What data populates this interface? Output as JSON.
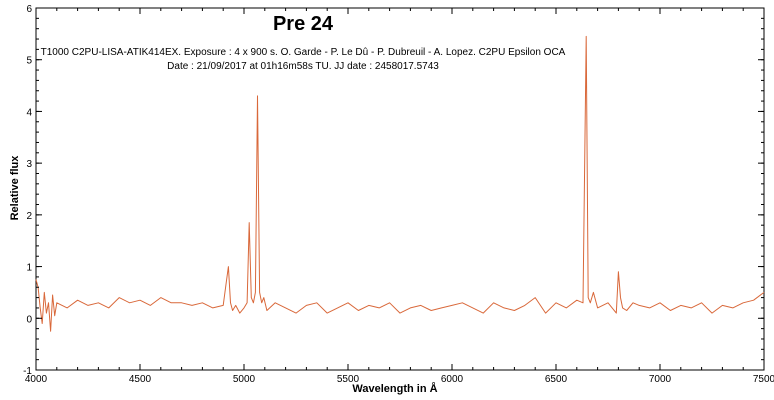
{
  "chart_data": {
    "type": "line",
    "title": "Pre 24",
    "subtitle_lines": [
      "T1000 C2PU-LISA-ATIK414EX. Exposure : 4 x 900 s. O. Garde - P. Le Dû - P. Dubreuil - A. Lopez. C2PU Epsilon OCA",
      "Date : 21/09/2017 at 01h16m58s TU. JJ date : 2458017.5743"
    ],
    "xlabel": "Wavelength in Å",
    "ylabel": "Relative flux",
    "xlim": [
      4000,
      7500
    ],
    "ylim": [
      -1,
      6
    ],
    "x_ticks": [
      4000,
      4500,
      5000,
      5500,
      6000,
      6500,
      7000,
      7500
    ],
    "y_ticks": [
      -1,
      0,
      1,
      2,
      3,
      4,
      5,
      6
    ],
    "grid": false,
    "line_color": "#d9683a",
    "series": [
      {
        "x": [
          4000,
          4010,
          4020,
          4030,
          4040,
          4050,
          4060,
          4070,
          4080,
          4090,
          4100,
          4150,
          4200,
          4250,
          4300,
          4350,
          4400,
          4450,
          4500,
          4550,
          4600,
          4650,
          4700,
          4750,
          4800,
          4850,
          4900,
          4915,
          4925,
          4935,
          4945,
          4960,
          4980,
          5000,
          5015,
          5025,
          5035,
          5045,
          5055,
          5065,
          5075,
          5085,
          5095,
          5110,
          5150,
          5200,
          5250,
          5300,
          5350,
          5400,
          5450,
          5500,
          5550,
          5600,
          5650,
          5700,
          5750,
          5800,
          5850,
          5900,
          5950,
          6000,
          6050,
          6100,
          6150,
          6200,
          6250,
          6300,
          6350,
          6400,
          6450,
          6500,
          6550,
          6600,
          6630,
          6645,
          6655,
          6665,
          6680,
          6700,
          6750,
          6790,
          6800,
          6810,
          6820,
          6840,
          6870,
          6900,
          6950,
          7000,
          7050,
          7100,
          7150,
          7200,
          7250,
          7300,
          7350,
          7400,
          7450,
          7500
        ],
        "y": [
          0.75,
          0.6,
          0.2,
          -0.1,
          0.5,
          0.1,
          0.3,
          -0.25,
          0.45,
          0.05,
          0.3,
          0.2,
          0.35,
          0.25,
          0.3,
          0.2,
          0.4,
          0.3,
          0.35,
          0.25,
          0.4,
          0.3,
          0.3,
          0.25,
          0.3,
          0.2,
          0.25,
          0.7,
          1.0,
          0.3,
          0.15,
          0.25,
          0.1,
          0.2,
          0.3,
          1.85,
          0.4,
          0.3,
          0.5,
          4.3,
          0.5,
          0.3,
          0.4,
          0.15,
          0.3,
          0.2,
          0.1,
          0.25,
          0.3,
          0.1,
          0.2,
          0.3,
          0.15,
          0.25,
          0.2,
          0.3,
          0.1,
          0.2,
          0.25,
          0.15,
          0.2,
          0.25,
          0.3,
          0.2,
          0.1,
          0.3,
          0.2,
          0.15,
          0.25,
          0.4,
          0.1,
          0.3,
          0.2,
          0.35,
          0.3,
          5.45,
          0.4,
          0.3,
          0.5,
          0.2,
          0.3,
          0.1,
          0.9,
          0.4,
          0.2,
          0.15,
          0.3,
          0.25,
          0.2,
          0.3,
          0.15,
          0.25,
          0.2,
          0.3,
          0.1,
          0.25,
          0.2,
          0.3,
          0.35,
          0.5
        ]
      }
    ]
  }
}
